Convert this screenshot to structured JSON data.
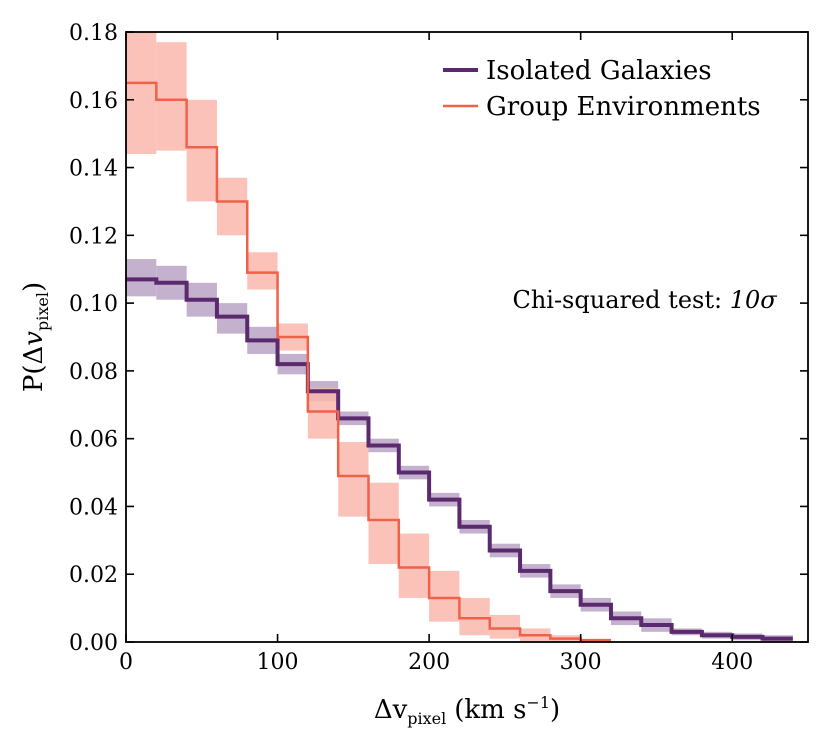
{
  "chart_data": {
    "type": "histogram-step",
    "xlabel": "Δv_pixel (km s⁻¹)",
    "xlabel_main": "Δv",
    "xlabel_sub": "pixel",
    "xlabel_units": "(km s",
    "xlabel_sup": "−1",
    "xlabel_close": ")",
    "ylabel": "P(Δv_pixel)",
    "ylabel_pre": "P(Δ",
    "ylabel_v": "v",
    "ylabel_sub": "pixel",
    "ylabel_close": ")",
    "xlim": [
      0,
      450
    ],
    "ylim": [
      0,
      0.18
    ],
    "xticks": [
      0,
      100,
      200,
      300,
      400
    ],
    "xtick_labels": [
      "0",
      "100",
      "200",
      "300",
      "400"
    ],
    "yticks": [
      0,
      0.02,
      0.04,
      0.06,
      0.08,
      0.1,
      0.12,
      0.14,
      0.16,
      0.18
    ],
    "ytick_labels": [
      "0.00",
      "0.02",
      "0.04",
      "0.06",
      "0.08",
      "0.10",
      "0.12",
      "0.14",
      "0.16",
      "0.18"
    ],
    "bin_edges": [
      0,
      20,
      40,
      60,
      80,
      100,
      120,
      140,
      160,
      180,
      200,
      220,
      240,
      260,
      280,
      300,
      320,
      340,
      360,
      380,
      400,
      420,
      440
    ],
    "legend_position": "top-right",
    "annotation": "Chi-squared test: 10σ",
    "annotation_pre": "Chi-squared test: ",
    "annotation_math": "10σ",
    "annotation_x": 255,
    "annotation_y": 0.0985,
    "series": [
      {
        "name": "Isolated Galaxies",
        "color": "#5b2a6e",
        "band_color": "#b8a3c4",
        "line_width": 4,
        "values": [
          0.107,
          0.106,
          0.101,
          0.096,
          0.089,
          0.082,
          0.074,
          0.066,
          0.058,
          0.05,
          0.042,
          0.034,
          0.027,
          0.021,
          0.015,
          0.011,
          0.007,
          0.005,
          0.003,
          0.002,
          0.0015,
          0.001
        ],
        "lower": [
          0.102,
          0.101,
          0.096,
          0.091,
          0.085,
          0.079,
          0.071,
          0.064,
          0.056,
          0.048,
          0.04,
          0.032,
          0.025,
          0.019,
          0.013,
          0.009,
          0.005,
          0.003,
          0.002,
          0.001,
          0.0005,
          0.0
        ],
        "upper": [
          0.113,
          0.111,
          0.106,
          0.1,
          0.093,
          0.085,
          0.077,
          0.068,
          0.06,
          0.052,
          0.044,
          0.036,
          0.029,
          0.023,
          0.017,
          0.013,
          0.009,
          0.007,
          0.004,
          0.003,
          0.0025,
          0.002
        ]
      },
      {
        "name": "Group Environments",
        "color": "#f0614a",
        "band_color": "#f9b7ac",
        "line_width": 2.5,
        "values": [
          0.165,
          0.16,
          0.146,
          0.13,
          0.109,
          0.09,
          0.068,
          0.049,
          0.036,
          0.022,
          0.013,
          0.007,
          0.004,
          0.002,
          0.001,
          0.0005
        ],
        "lower": [
          0.144,
          0.145,
          0.13,
          0.12,
          0.104,
          0.086,
          0.06,
          0.037,
          0.023,
          0.013,
          0.006,
          0.002,
          0.001,
          0.0003,
          0.0,
          0.0
        ],
        "upper": [
          0.18,
          0.177,
          0.16,
          0.137,
          0.115,
          0.094,
          0.075,
          0.059,
          0.047,
          0.032,
          0.021,
          0.013,
          0.008,
          0.004,
          0.002,
          0.001
        ]
      }
    ]
  }
}
